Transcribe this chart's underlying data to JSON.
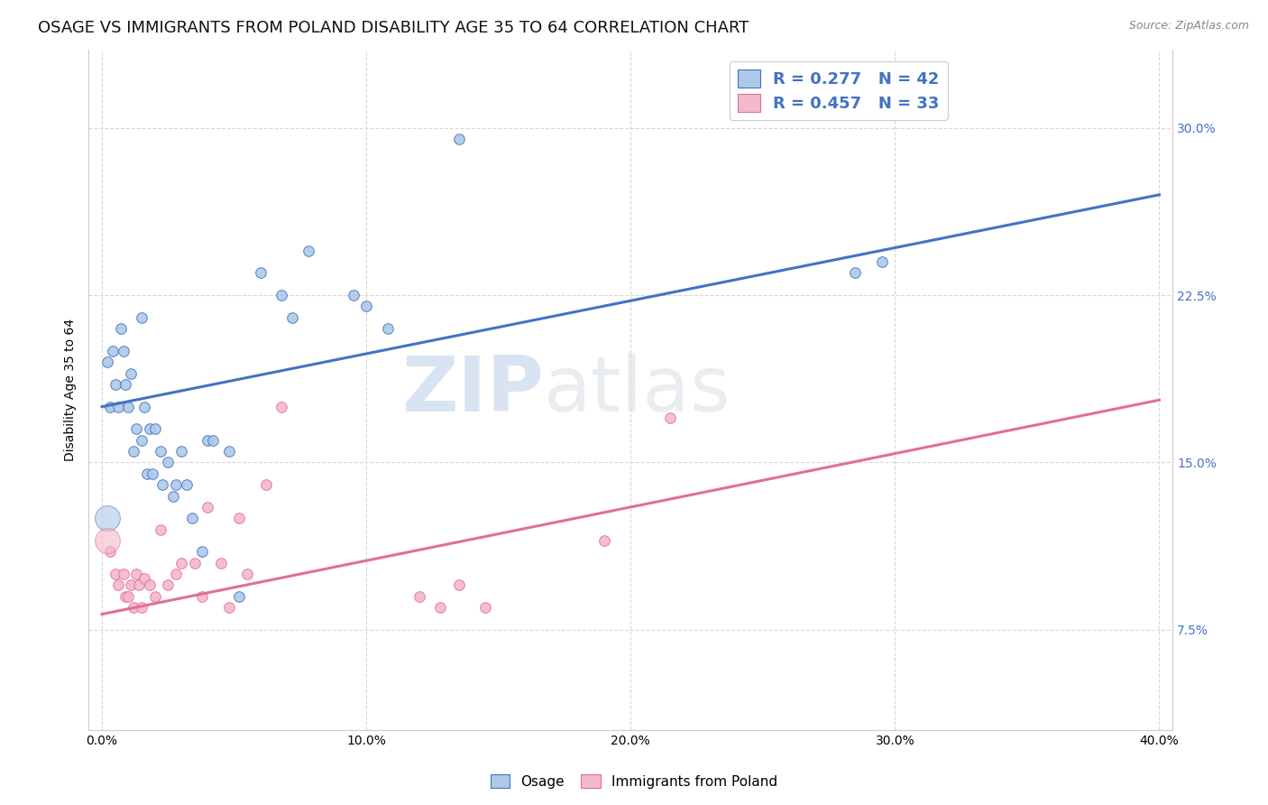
{
  "title": "OSAGE VS IMMIGRANTS FROM POLAND DISABILITY AGE 35 TO 64 CORRELATION CHART",
  "source": "Source: ZipAtlas.com",
  "ylabel": "Disability Age 35 to 64",
  "xlabel_ticks": [
    "0.0%",
    "10.0%",
    "20.0%",
    "30.0%",
    "40.0%"
  ],
  "xlabel_vals": [
    0.0,
    0.1,
    0.2,
    0.3,
    0.4
  ],
  "ylabel_ticks_right": [
    "7.5%",
    "15.0%",
    "22.5%",
    "30.0%"
  ],
  "ylabel_vals_right": [
    0.075,
    0.15,
    0.225,
    0.3
  ],
  "xlim": [
    -0.005,
    0.405
  ],
  "ylim": [
    0.03,
    0.335
  ],
  "legend_r_blue": "R = 0.277",
  "legend_n_blue": "N = 42",
  "legend_r_pink": "R = 0.457",
  "legend_n_pink": "N = 33",
  "legend_label_blue": "Osage",
  "legend_label_pink": "Immigrants from Poland",
  "blue_scatter_x": [
    0.002,
    0.003,
    0.004,
    0.005,
    0.006,
    0.007,
    0.008,
    0.009,
    0.01,
    0.011,
    0.012,
    0.013,
    0.015,
    0.015,
    0.016,
    0.017,
    0.018,
    0.019,
    0.02,
    0.022,
    0.023,
    0.025,
    0.027,
    0.028,
    0.03,
    0.032,
    0.034,
    0.038,
    0.04,
    0.042,
    0.048,
    0.052,
    0.06,
    0.068,
    0.072,
    0.078,
    0.095,
    0.1,
    0.108,
    0.135,
    0.285,
    0.295
  ],
  "blue_scatter_y": [
    0.195,
    0.175,
    0.2,
    0.185,
    0.175,
    0.21,
    0.2,
    0.185,
    0.175,
    0.19,
    0.155,
    0.165,
    0.215,
    0.16,
    0.175,
    0.145,
    0.165,
    0.145,
    0.165,
    0.155,
    0.14,
    0.15,
    0.135,
    0.14,
    0.155,
    0.14,
    0.125,
    0.11,
    0.16,
    0.16,
    0.155,
    0.09,
    0.235,
    0.225,
    0.215,
    0.245,
    0.225,
    0.22,
    0.21,
    0.295,
    0.235,
    0.24
  ],
  "pink_scatter_x": [
    0.003,
    0.005,
    0.006,
    0.008,
    0.009,
    0.01,
    0.011,
    0.012,
    0.013,
    0.014,
    0.015,
    0.016,
    0.018,
    0.02,
    0.022,
    0.025,
    0.028,
    0.03,
    0.035,
    0.038,
    0.04,
    0.045,
    0.048,
    0.052,
    0.055,
    0.062,
    0.068,
    0.12,
    0.128,
    0.135,
    0.145,
    0.19,
    0.215
  ],
  "pink_scatter_y": [
    0.11,
    0.1,
    0.095,
    0.1,
    0.09,
    0.09,
    0.095,
    0.085,
    0.1,
    0.095,
    0.085,
    0.098,
    0.095,
    0.09,
    0.12,
    0.095,
    0.1,
    0.105,
    0.105,
    0.09,
    0.13,
    0.105,
    0.085,
    0.125,
    0.1,
    0.14,
    0.175,
    0.09,
    0.085,
    0.095,
    0.085,
    0.115,
    0.17
  ],
  "blue_line_x": [
    0.0,
    0.4
  ],
  "blue_line_y_start": 0.175,
  "blue_line_y_end": 0.27,
  "pink_line_x": [
    0.0,
    0.4
  ],
  "pink_line_y_start": 0.082,
  "pink_line_y_end": 0.178,
  "scatter_size": 70,
  "blue_color": "#adc9e8",
  "blue_line_color": "#4472c4",
  "pink_color": "#f4b8cb",
  "pink_line_color": "#e07090",
  "background_color": "#ffffff",
  "grid_color": "#d8d8d8",
  "watermark_zip": "ZIP",
  "watermark_atlas": "atlas",
  "watermark_color": "#c5d9ee",
  "title_fontsize": 13,
  "axis_label_fontsize": 10,
  "tick_fontsize": 10
}
